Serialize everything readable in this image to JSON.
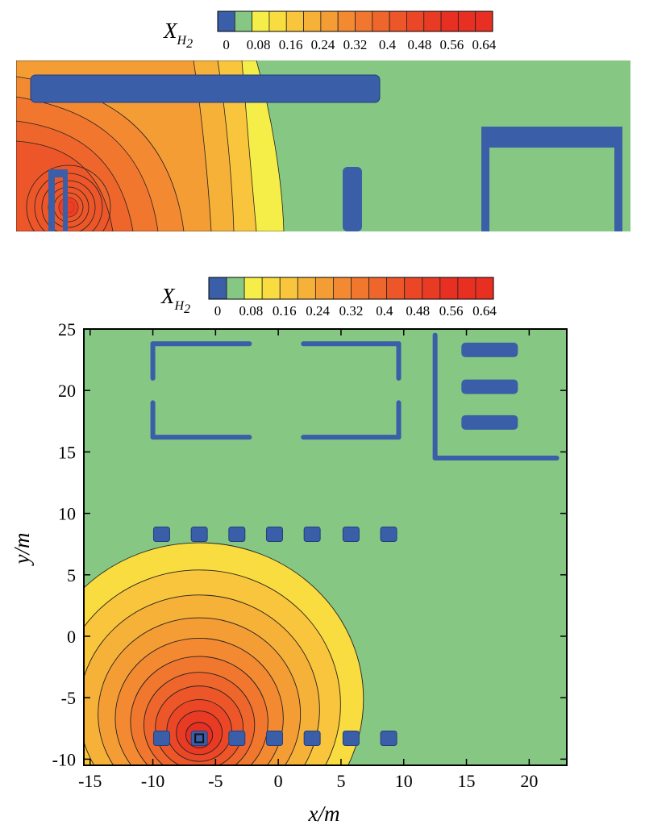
{
  "chart_data": [
    {
      "type": "heatmap",
      "view": "side section",
      "colorbar": {
        "variable": "X",
        "subscript": "H",
        "subscript_num": "2",
        "tick_labels": [
          "0",
          "0.08",
          "0.16",
          "0.24",
          "0.32",
          "0.4",
          "0.48",
          "0.56",
          "0.64"
        ],
        "range": [
          0,
          0.64
        ],
        "levels": 16,
        "colors": [
          "#3a5ea8",
          "#86c784",
          "#f6ee48",
          "#f9dc3f",
          "#f8c53c",
          "#f6b138",
          "#f59d35",
          "#f38a32",
          "#f1772f",
          "#ef662c",
          "#ed5629",
          "#eb4726",
          "#e93a24",
          "#e72f22"
        ]
      },
      "obstacle_color": "#3a5ea8",
      "background_color": "#86c784",
      "plume": {
        "max_value": 0.64,
        "source": "left obstacle"
      }
    },
    {
      "type": "heatmap",
      "view": "plan",
      "colorbar": {
        "variable": "X",
        "subscript": "H",
        "subscript_num": "2",
        "tick_labels": [
          "0",
          "0.08",
          "0.16",
          "0.24",
          "0.32",
          "0.4",
          "0.48",
          "0.56",
          "0.64"
        ],
        "range": [
          0,
          0.64
        ],
        "levels": 16
      },
      "xlabel": "x/m",
      "ylabel": "y/m",
      "xlim": [
        -15.5,
        23
      ],
      "ylim": [
        -10.5,
        25
      ],
      "xticks": [
        -15,
        -10,
        -5,
        0,
        5,
        10,
        15,
        20
      ],
      "yticks": [
        -10,
        -5,
        0,
        5,
        10,
        15,
        20,
        25
      ],
      "xtick_labels": [
        "-15",
        "-10",
        "-5",
        "0",
        "5",
        "10",
        "15",
        "20"
      ],
      "ytick_labels": [
        "-10",
        "-5",
        "0",
        "5",
        "10",
        "15",
        "20",
        "25"
      ],
      "source": {
        "x": -6.3,
        "y": -8.3,
        "max_value": 0.64
      },
      "plume_edge": {
        "reach_y": 4.3,
        "reach_x": 3.3
      },
      "obstacles": {
        "blocks_row_y8": [
          -9.3,
          -6.3,
          -3.3,
          -0.3,
          2.7,
          5.8,
          8.8
        ],
        "blocks_row_y_minus8": [
          -9.3,
          -6.3,
          -3.3,
          -0.3,
          2.7,
          5.8,
          8.8
        ],
        "bars_y": [
          23.3,
          20.3,
          17.4
        ]
      }
    }
  ]
}
